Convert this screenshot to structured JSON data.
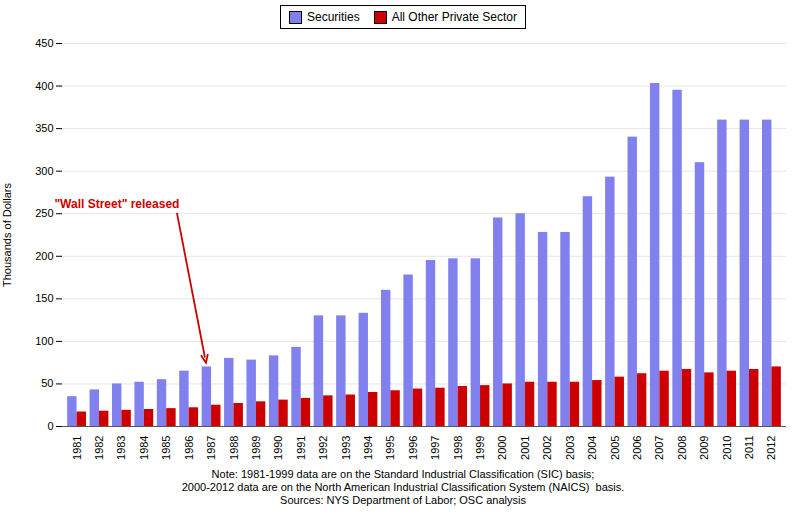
{
  "chart_data": {
    "type": "bar",
    "categories": [
      "1981",
      "1982",
      "1983",
      "1984",
      "1985",
      "1986",
      "1987",
      "1988",
      "1989",
      "1990",
      "1991",
      "1992",
      "1993",
      "1994",
      "1995",
      "1996",
      "1997",
      "1998",
      "1999",
      "2000",
      "2001",
      "2002",
      "2003",
      "2004",
      "2005",
      "2006",
      "2007",
      "2008",
      "2009",
      "2010",
      "2011",
      "2012"
    ],
    "series": [
      {
        "name": "Securities",
        "color": "#8080EE",
        "values": [
          35,
          43,
          50,
          52,
          55,
          65,
          70,
          80,
          78,
          83,
          93,
          130,
          130,
          133,
          160,
          178,
          195,
          197,
          197,
          245,
          250,
          228,
          228,
          270,
          293,
          340,
          403,
          395,
          310,
          360,
          360,
          360
        ]
      },
      {
        "name": "All Other Private Sector",
        "color": "#CC0000",
        "values": [
          17,
          18,
          19,
          20,
          21,
          22,
          25,
          27,
          29,
          31,
          33,
          36,
          37,
          40,
          42,
          44,
          45,
          47,
          48,
          50,
          52,
          52,
          52,
          54,
          58,
          62,
          65,
          67,
          63,
          65,
          67,
          70
        ]
      }
    ],
    "ylabel": "Thousands of Dollars",
    "ylim": [
      0,
      450
    ],
    "yticks": [
      0,
      50,
      100,
      150,
      200,
      250,
      300,
      350,
      400,
      450
    ],
    "grid": true,
    "legend": "top",
    "annotations": [
      {
        "text": "\"Wall Street\" released",
        "x": "1987",
        "y": 72,
        "color": "#CC0000"
      }
    ],
    "caption": [
      "Note: 1981-1999 data are on the Standard Industrial Classification (SIC) basis;",
      "2000-2012 data are on the North American Industrial Classification System (NAICS)  basis.",
      "Sources: NYS Department of Labor; OSC analysis"
    ]
  }
}
